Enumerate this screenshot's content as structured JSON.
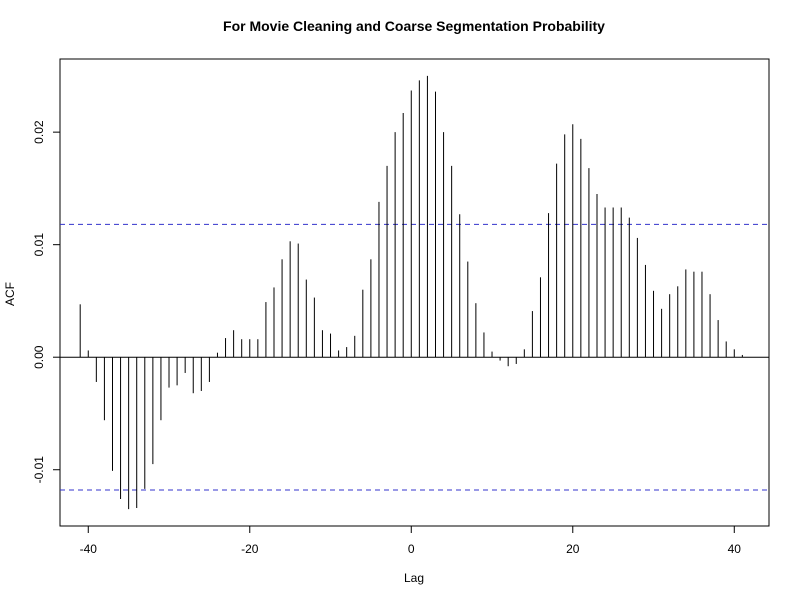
{
  "chart_data": {
    "type": "bar",
    "title": "For Movie Cleaning and Coarse Segmentation Probability",
    "xlabel": "Lag",
    "ylabel": "ACF",
    "xlim": [
      -43.5,
      44.3
    ],
    "ylim": [
      -0.015,
      0.0265
    ],
    "x_ticks": [
      -40,
      -20,
      0,
      20,
      40
    ],
    "x_tick_labels": [
      "-40",
      "-20",
      "0",
      "20",
      "40"
    ],
    "y_ticks": [
      -0.01,
      0.0,
      0.01,
      0.02
    ],
    "y_tick_labels": [
      "-0.01",
      "0.00",
      "0.01",
      "0.02"
    ],
    "zero_line": 0.0,
    "confidence_bound": 0.0118,
    "confidence_color": "#3333cc",
    "bar_color": "#000000",
    "grid": false,
    "legend": "none",
    "lags": [
      -41,
      -40,
      -39,
      -38,
      -37,
      -36,
      -35,
      -34,
      -33,
      -32,
      -31,
      -30,
      -29,
      -28,
      -27,
      -26,
      -25,
      -24,
      -23,
      -22,
      -21,
      -20,
      -19,
      -18,
      -17,
      -16,
      -15,
      -14,
      -13,
      -12,
      -11,
      -10,
      -9,
      -8,
      -7,
      -6,
      -5,
      -4,
      -3,
      -2,
      -1,
      0,
      1,
      2,
      3,
      4,
      5,
      6,
      7,
      8,
      9,
      10,
      11,
      12,
      13,
      14,
      15,
      16,
      17,
      18,
      19,
      20,
      21,
      22,
      23,
      24,
      25,
      26,
      27,
      28,
      29,
      30,
      31,
      32,
      33,
      34,
      35,
      36,
      37,
      38,
      39,
      40,
      41
    ],
    "values": [
      0.0047,
      0.0006,
      -0.0022,
      -0.0056,
      -0.0101,
      -0.0126,
      -0.0135,
      -0.0134,
      -0.0117,
      -0.0095,
      -0.0056,
      -0.0027,
      -0.0025,
      -0.0014,
      -0.0032,
      -0.003,
      -0.0022,
      0.0004,
      0.0017,
      0.0024,
      0.0016,
      0.0016,
      0.0016,
      0.0049,
      0.0062,
      0.0087,
      0.0103,
      0.0101,
      0.0069,
      0.0053,
      0.0024,
      0.0021,
      0.0006,
      0.0009,
      0.0019,
      0.006,
      0.0087,
      0.0138,
      0.017,
      0.02,
      0.0217,
      0.0237,
      0.0246,
      0.025,
      0.0236,
      0.02,
      0.017,
      0.0127,
      0.0085,
      0.0048,
      0.0022,
      0.0005,
      -0.0003,
      -0.0008,
      -0.0006,
      0.0007,
      0.0041,
      0.0071,
      0.0128,
      0.0172,
      0.0198,
      0.0207,
      0.0194,
      0.0168,
      0.0145,
      0.0133,
      0.0133,
      0.0133,
      0.0124,
      0.0106,
      0.0082,
      0.0059,
      0.0043,
      0.0056,
      0.0063,
      0.0078,
      0.0076,
      0.0076,
      0.0056,
      0.0033,
      0.0014,
      0.0007,
      0.0002
    ]
  }
}
